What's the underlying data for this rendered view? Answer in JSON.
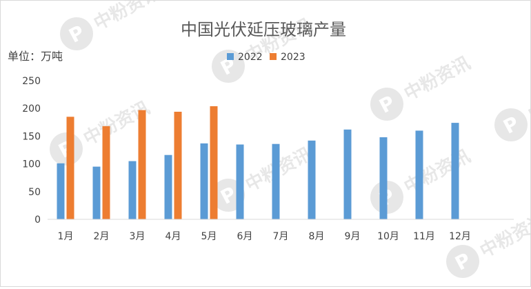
{
  "chart_data": {
    "type": "bar",
    "title": "中国光伏延压玻璃产量",
    "ylabel": "单位：万吨",
    "categories": [
      "1月",
      "2月",
      "3月",
      "4月",
      "5月",
      "6月",
      "7月",
      "8月",
      "9月",
      "10月",
      "11月",
      "12月"
    ],
    "series": [
      {
        "name": "2022",
        "color": "#5b9bd5",
        "values": [
          101,
          95,
          105,
          116,
          137,
          135,
          136,
          142,
          162,
          148,
          160,
          174
        ]
      },
      {
        "name": "2023",
        "color": "#ed7d31",
        "values": [
          185,
          168,
          197,
          194,
          204,
          null,
          null,
          null,
          null,
          null,
          null,
          null
        ]
      }
    ],
    "ylim": [
      0,
      250
    ],
    "yticks": [
      0,
      50,
      100,
      150,
      200,
      250
    ],
    "grid": false,
    "legend_position": "top"
  },
  "watermark": {
    "text": "中粉资讯",
    "logo_icon": "p-logo-icon"
  }
}
